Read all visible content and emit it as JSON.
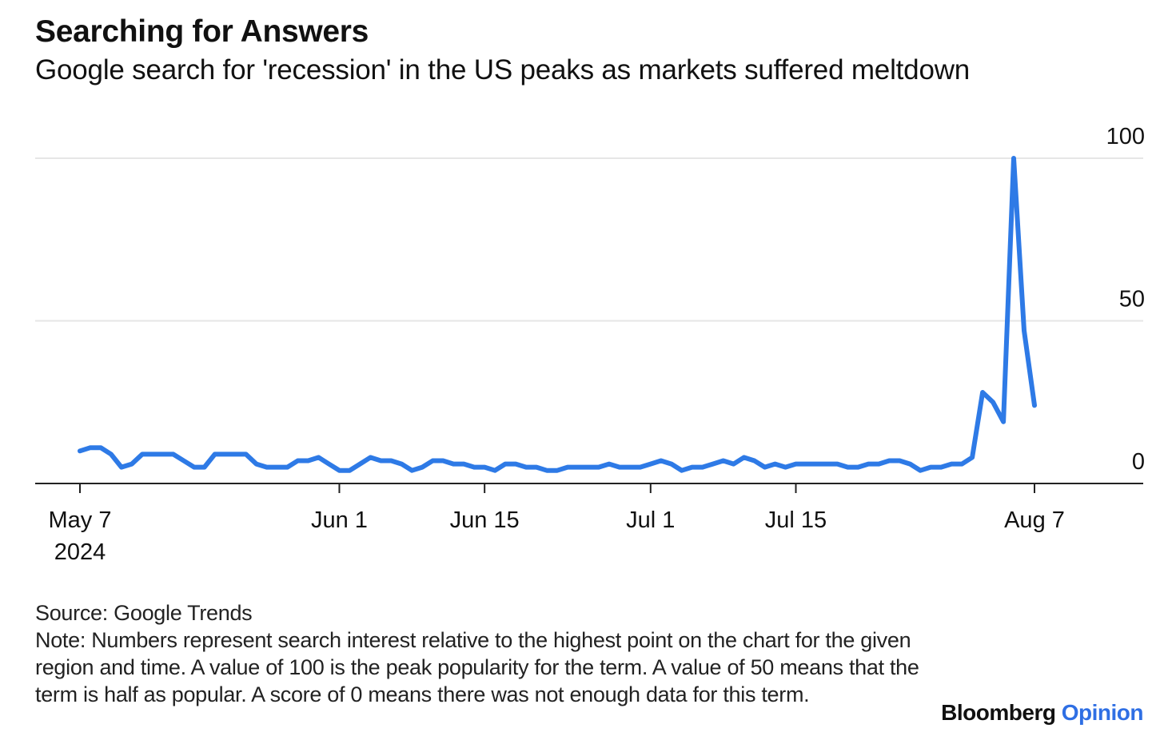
{
  "header": {
    "title": "Searching for Answers",
    "subtitle": "Google search for 'recession' in the US peaks as markets suffered meltdown"
  },
  "footer": {
    "source": "Source: Google Trends",
    "note": "Note: Numbers represent search interest relative to the highest point on the chart for the given region and time. A value of 100 is the peak popularity for the term. A value of 50 means that the term is half as popular. A score of 0 means there was not enough data for this term."
  },
  "brand": {
    "name": "Bloomberg",
    "suffix": "Opinion"
  },
  "colors": {
    "line": "#2e7ae6",
    "grid": "#e6e6e6",
    "axis": "#222222",
    "brand_accent": "#2f6fe4"
  },
  "chart_data": {
    "type": "line",
    "title": "Searching for Answers",
    "subtitle": "Google search for 'recession' in the US peaks as markets suffered meltdown",
    "xlabel": "",
    "ylabel": "",
    "ylim": [
      0,
      100
    ],
    "y_ticks": [
      0,
      50,
      100
    ],
    "y_axis_position": "right",
    "grid": true,
    "legend": "none",
    "x_ticks": [
      {
        "date": "2024-05-07",
        "label": "May 7",
        "sublabel": "2024"
      },
      {
        "date": "2024-06-01",
        "label": "Jun 1"
      },
      {
        "date": "2024-06-15",
        "label": "Jun 15"
      },
      {
        "date": "2024-07-01",
        "label": "Jul 1"
      },
      {
        "date": "2024-07-15",
        "label": "Jul 15"
      },
      {
        "date": "2024-08-07",
        "label": "Aug 7"
      }
    ],
    "series": [
      {
        "x": [
          "2024-05-07",
          "2024-05-08",
          "2024-05-09",
          "2024-05-10",
          "2024-05-11",
          "2024-05-12",
          "2024-05-13",
          "2024-05-14",
          "2024-05-15",
          "2024-05-16",
          "2024-05-17",
          "2024-05-18",
          "2024-05-19",
          "2024-05-20",
          "2024-05-21",
          "2024-05-22",
          "2024-05-23",
          "2024-05-24",
          "2024-05-25",
          "2024-05-26",
          "2024-05-27",
          "2024-05-28",
          "2024-05-29",
          "2024-05-30",
          "2024-05-31",
          "2024-06-01",
          "2024-06-02",
          "2024-06-03",
          "2024-06-04",
          "2024-06-05",
          "2024-06-06",
          "2024-06-07",
          "2024-06-08",
          "2024-06-09",
          "2024-06-10",
          "2024-06-11",
          "2024-06-12",
          "2024-06-13",
          "2024-06-14",
          "2024-06-15",
          "2024-06-16",
          "2024-06-17",
          "2024-06-18",
          "2024-06-19",
          "2024-06-20",
          "2024-06-21",
          "2024-06-22",
          "2024-06-23",
          "2024-06-24",
          "2024-06-25",
          "2024-06-26",
          "2024-06-27",
          "2024-06-28",
          "2024-06-29",
          "2024-06-30",
          "2024-07-01",
          "2024-07-02",
          "2024-07-03",
          "2024-07-04",
          "2024-07-05",
          "2024-07-06",
          "2024-07-07",
          "2024-07-08",
          "2024-07-09",
          "2024-07-10",
          "2024-07-11",
          "2024-07-12",
          "2024-07-13",
          "2024-07-14",
          "2024-07-15",
          "2024-07-16",
          "2024-07-17",
          "2024-07-18",
          "2024-07-19",
          "2024-07-20",
          "2024-07-21",
          "2024-07-22",
          "2024-07-23",
          "2024-07-24",
          "2024-07-25",
          "2024-07-26",
          "2024-07-27",
          "2024-07-28",
          "2024-07-29",
          "2024-07-30",
          "2024-07-31",
          "2024-08-01",
          "2024-08-02",
          "2024-08-03",
          "2024-08-04",
          "2024-08-05",
          "2024-08-06",
          "2024-08-07"
        ],
        "values": [
          10,
          11,
          11,
          9,
          5,
          6,
          9,
          9,
          9,
          9,
          7,
          5,
          5,
          9,
          9,
          9,
          9,
          6,
          5,
          5,
          5,
          7,
          7,
          8,
          6,
          4,
          4,
          6,
          8,
          7,
          7,
          6,
          4,
          5,
          7,
          7,
          6,
          6,
          5,
          5,
          4,
          6,
          6,
          5,
          5,
          4,
          4,
          5,
          5,
          5,
          5,
          6,
          5,
          5,
          5,
          6,
          7,
          6,
          4,
          5,
          5,
          6,
          7,
          6,
          8,
          7,
          5,
          6,
          5,
          6,
          6,
          6,
          6,
          6,
          5,
          5,
          6,
          6,
          7,
          7,
          6,
          4,
          5,
          5,
          6,
          6,
          8,
          28,
          25,
          19,
          100,
          47,
          24
        ]
      }
    ]
  }
}
